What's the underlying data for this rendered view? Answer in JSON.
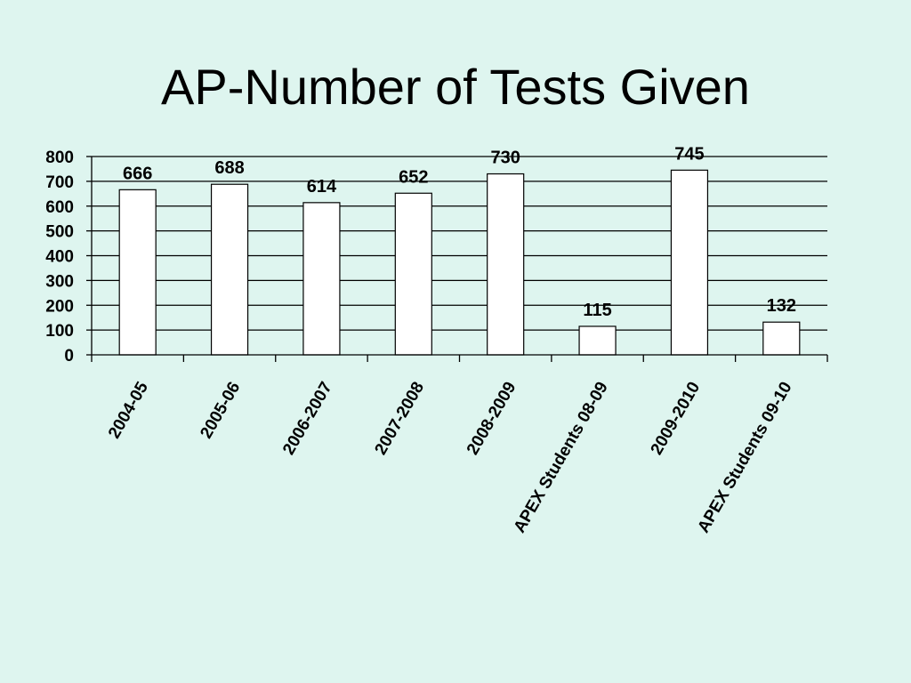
{
  "slide": {
    "title": "AP-Number of Tests Given"
  },
  "colors": {
    "background": "#def5ef",
    "bar_fill": "#ffffff",
    "bar_stroke": "#000000",
    "grid": "#000000"
  },
  "chart_data": {
    "type": "bar",
    "title": "AP-Number of Tests Given",
    "xlabel": "",
    "ylabel": "",
    "categories": [
      "2004-05",
      "2005-06",
      "2006-2007",
      "2007-2008",
      "2008-2009",
      "APEX Students 08-09",
      "2009-2010",
      "APEX Students 09-10"
    ],
    "values": [
      666,
      688,
      614,
      652,
      730,
      115,
      745,
      132
    ],
    "data_labels": [
      "666",
      "688",
      "614",
      "652",
      "730",
      "115",
      "745",
      "132"
    ],
    "ylim": [
      0,
      800
    ],
    "yticks": [
      0,
      100,
      200,
      300,
      400,
      500,
      600,
      700,
      800
    ],
    "ytick_labels": [
      "0",
      "100",
      "200",
      "300",
      "400",
      "500",
      "600",
      "700",
      "800"
    ],
    "grid": true,
    "legend": "none"
  }
}
